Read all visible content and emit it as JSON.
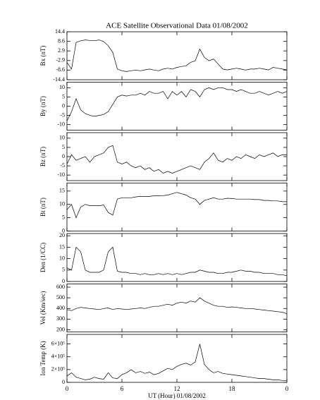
{
  "chart_data": [
    {
      "type": "line",
      "title": "ACE Satellite Observational Data   01/08/2002",
      "ylabel": "Bx (nT)",
      "color": "#000000",
      "x": [
        0,
        0.5,
        1,
        1.5,
        2,
        2.5,
        3,
        3.5,
        4,
        4.5,
        5,
        5.5,
        6,
        6.5,
        7,
        7.5,
        8,
        8.5,
        9,
        9.5,
        10,
        10.5,
        11,
        11.5,
        12,
        12.5,
        13,
        13.5,
        14,
        14.5,
        15,
        15.5,
        16,
        16.5,
        17,
        17.5,
        18,
        18.5,
        19,
        19.5,
        20,
        20.5,
        21,
        21.5,
        22,
        22.5,
        23,
        23.5,
        24
      ],
      "values": [
        -4,
        -8,
        8,
        9,
        9.5,
        9.2,
        9,
        9.5,
        8.5,
        6,
        2,
        -8,
        -9,
        -9.5,
        -9,
        -8.6,
        -9,
        -8.5,
        -8,
        -8.6,
        -9,
        -8,
        -7.5,
        -8,
        -7,
        -6.5,
        -6,
        -4,
        -3,
        4,
        -1,
        -3,
        -2,
        -5,
        -8,
        -8.5,
        -8,
        -7.5,
        -8,
        -8.6,
        -8,
        -8,
        -7.5,
        -8,
        -8.5,
        -7,
        -7.5,
        -8,
        -8.5
      ],
      "ylim": [
        -14.4,
        14.4
      ],
      "yticks": [
        14.4,
        8.6,
        2.9,
        -2.9,
        -8.6,
        -14.4
      ]
    },
    {
      "type": "line",
      "ylabel": "By (nT)",
      "color": "#000000",
      "x": [
        0,
        0.5,
        1,
        1.5,
        2,
        2.5,
        3,
        3.5,
        4,
        4.5,
        5,
        5.5,
        6,
        6.5,
        7,
        7.5,
        8,
        8.5,
        9,
        9.5,
        10,
        10.5,
        11,
        11.5,
        12,
        12.5,
        13,
        13.5,
        14,
        14.5,
        15,
        15.5,
        16,
        16.5,
        17,
        17.5,
        18,
        18.5,
        19,
        19.5,
        20,
        20.5,
        21,
        21.5,
        22,
        22.5,
        23,
        23.5,
        24
      ],
      "values": [
        -8,
        -3,
        4,
        -2,
        -4,
        -5,
        -5.5,
        -5,
        -4.5,
        -3,
        1,
        5,
        6,
        5.5,
        6,
        6,
        7,
        6,
        8,
        7,
        7,
        8,
        4,
        8,
        6,
        8,
        5,
        9,
        8,
        5,
        9,
        10,
        9,
        10,
        10,
        9,
        9,
        8,
        9,
        8,
        7,
        7,
        8,
        7,
        6,
        7,
        8,
        7,
        8
      ],
      "ylim": [
        -13,
        13
      ],
      "yticks": [
        -10,
        -5,
        0,
        5,
        10
      ]
    },
    {
      "type": "line",
      "ylabel": "Bz (nT)",
      "color": "#000000",
      "x": [
        0,
        0.5,
        1,
        1.5,
        2,
        2.5,
        3,
        3.5,
        4,
        4.5,
        5,
        5.5,
        6,
        6.5,
        7,
        7.5,
        8,
        8.5,
        9,
        9.5,
        10,
        10.5,
        11,
        11.5,
        12,
        12.5,
        13,
        13.5,
        14,
        14.5,
        15,
        15.5,
        16,
        16.5,
        17,
        17.5,
        18,
        18.5,
        19,
        19.5,
        20,
        20.5,
        21,
        21.5,
        22,
        22.5,
        23,
        23.5,
        24
      ],
      "values": [
        -4,
        1,
        -2,
        -1,
        0,
        -3,
        0,
        1,
        2,
        5,
        6,
        -3,
        -4,
        -3,
        -5,
        -6,
        -5,
        -7,
        -6,
        -8,
        -7,
        -9,
        -8,
        -9,
        -8,
        -7,
        -6,
        -5,
        -6,
        -7,
        -3,
        -1,
        2,
        -2,
        -3,
        -1,
        -2,
        0,
        -1,
        1,
        0,
        -1,
        1,
        0,
        1,
        2,
        0,
        1,
        1
      ],
      "ylim": [
        -13,
        13
      ],
      "yticks": [
        -10,
        -5,
        0,
        5,
        10
      ]
    },
    {
      "type": "line",
      "ylabel": "Bt (nT)",
      "color": "#000000",
      "x": [
        0,
        0.5,
        1,
        1.5,
        2,
        2.5,
        3,
        3.5,
        4,
        4.5,
        5,
        5.5,
        6,
        6.5,
        7,
        7.5,
        8,
        8.5,
        9,
        9.5,
        10,
        10.5,
        11,
        11.5,
        12,
        12.5,
        13,
        13.5,
        14,
        14.5,
        15,
        15.5,
        16,
        16.5,
        17,
        17.5,
        18,
        18.5,
        19,
        19.5,
        20,
        20.5,
        21,
        21.5,
        22,
        22.5,
        23,
        23.5,
        24
      ],
      "values": [
        8,
        10,
        5,
        9,
        10,
        9.5,
        9.5,
        9.5,
        9.8,
        7,
        6,
        12,
        12.5,
        12.5,
        12.5,
        12.8,
        13,
        13,
        13,
        13.2,
        13.2,
        13.3,
        13.5,
        14,
        14.5,
        14,
        13.5,
        12.5,
        12,
        10,
        11.5,
        12,
        12.5,
        12,
        12,
        12.3,
        12.2,
        12,
        12,
        12,
        12,
        11.8,
        11.8,
        11.5,
        11.5,
        11.3,
        11.3,
        11,
        11
      ],
      "ylim": [
        0,
        18
      ],
      "yticks": [
        0,
        5,
        10,
        15
      ]
    },
    {
      "type": "line",
      "ylabel": "Den (1/CC)",
      "color": "#000000",
      "x": [
        0,
        0.5,
        1,
        1.5,
        2,
        2.5,
        3,
        3.5,
        4,
        4.5,
        5,
        5.5,
        6,
        6.5,
        7,
        7.5,
        8,
        8.5,
        9,
        9.5,
        10,
        10.5,
        11,
        11.5,
        12,
        12.5,
        13,
        13.5,
        14,
        14.5,
        15,
        15.5,
        16,
        16.5,
        17,
        17.5,
        18,
        18.5,
        19,
        19.5,
        20,
        20.5,
        21,
        21.5,
        22,
        22.5,
        23,
        23.5,
        24
      ],
      "values": [
        6,
        5,
        15,
        13,
        5,
        4,
        4,
        4,
        5,
        13,
        15,
        4.5,
        4,
        4,
        3.5,
        3.5,
        3,
        3.5,
        3,
        3,
        3.5,
        3,
        3.5,
        3,
        3.5,
        3,
        3.5,
        4,
        4,
        5,
        4.5,
        4,
        4,
        3.5,
        3.5,
        4,
        4,
        4.5,
        5,
        4.5,
        4.5,
        4,
        4,
        3.5,
        3.5,
        3.5,
        3,
        3,
        2.5
      ],
      "ylim": [
        0,
        21
      ],
      "yticks": [
        0,
        5,
        10,
        15,
        20
      ]
    },
    {
      "type": "line",
      "ylabel": "Vel (Km/sec)",
      "color": "#000000",
      "x": [
        0,
        0.5,
        1,
        1.5,
        2,
        2.5,
        3,
        3.5,
        4,
        4.5,
        5,
        5.5,
        6,
        6.5,
        7,
        7.5,
        8,
        8.5,
        9,
        9.5,
        10,
        10.5,
        11,
        11.5,
        12,
        12.5,
        13,
        13.5,
        14,
        14.5,
        15,
        15.5,
        16,
        16.5,
        17,
        17.5,
        18,
        18.5,
        19,
        19.5,
        20,
        20.5,
        21,
        21.5,
        22,
        22.5,
        23,
        23.5,
        24
      ],
      "values": [
        390,
        380,
        400,
        410,
        405,
        400,
        395,
        390,
        400,
        405,
        390,
        400,
        395,
        390,
        395,
        400,
        405,
        400,
        410,
        420,
        420,
        430,
        440,
        430,
        450,
        460,
        450,
        470,
        460,
        500,
        470,
        450,
        430,
        420,
        420,
        410,
        415,
        410,
        405,
        400,
        400,
        395,
        390,
        385,
        380,
        375,
        370,
        365,
        350
      ],
      "ylim": [
        180,
        630
      ],
      "yticks": [
        200,
        300,
        400,
        500,
        600
      ]
    },
    {
      "type": "line",
      "ylabel": "Ion Temp (K)",
      "xlabel": "UT (Hour)   01/08/2002",
      "color": "#000000",
      "x": [
        0,
        0.5,
        1,
        1.5,
        2,
        2.5,
        3,
        3.5,
        4,
        4.5,
        5,
        5.5,
        6,
        6.5,
        7,
        7.5,
        8,
        8.5,
        9,
        9.5,
        10,
        10.5,
        11,
        11.5,
        12,
        12.5,
        13,
        13.5,
        14,
        14.5,
        15,
        15.5,
        16,
        16.5,
        17,
        17.5,
        18,
        18.5,
        19,
        19.5,
        20,
        20.5,
        21,
        21.5,
        22,
        22.5,
        23,
        23.5,
        24
      ],
      "values": [
        100000,
        150000,
        80000,
        60000,
        40000,
        50000,
        80000,
        60000,
        50000,
        150000,
        70000,
        60000,
        120000,
        150000,
        200000,
        150000,
        170000,
        140000,
        160000,
        120000,
        140000,
        180000,
        220000,
        200000,
        250000,
        280000,
        300000,
        270000,
        320000,
        600000,
        280000,
        200000,
        150000,
        170000,
        140000,
        130000,
        120000,
        110000,
        100000,
        90000,
        80000,
        70000,
        60000,
        60000,
        50000,
        40000,
        40000,
        30000,
        30000
      ],
      "ylim": [
        0,
        750000
      ],
      "yticks": [
        0,
        {
          "value": 200000,
          "label": "2×10⁵"
        },
        {
          "value": 400000,
          "label": "4×10⁵"
        },
        {
          "value": 600000,
          "label": "6×10⁵"
        }
      ],
      "xlim": [
        0,
        24
      ],
      "xticks": [
        0,
        6,
        12,
        18,
        {
          "value": 24,
          "label": "0"
        }
      ]
    }
  ]
}
